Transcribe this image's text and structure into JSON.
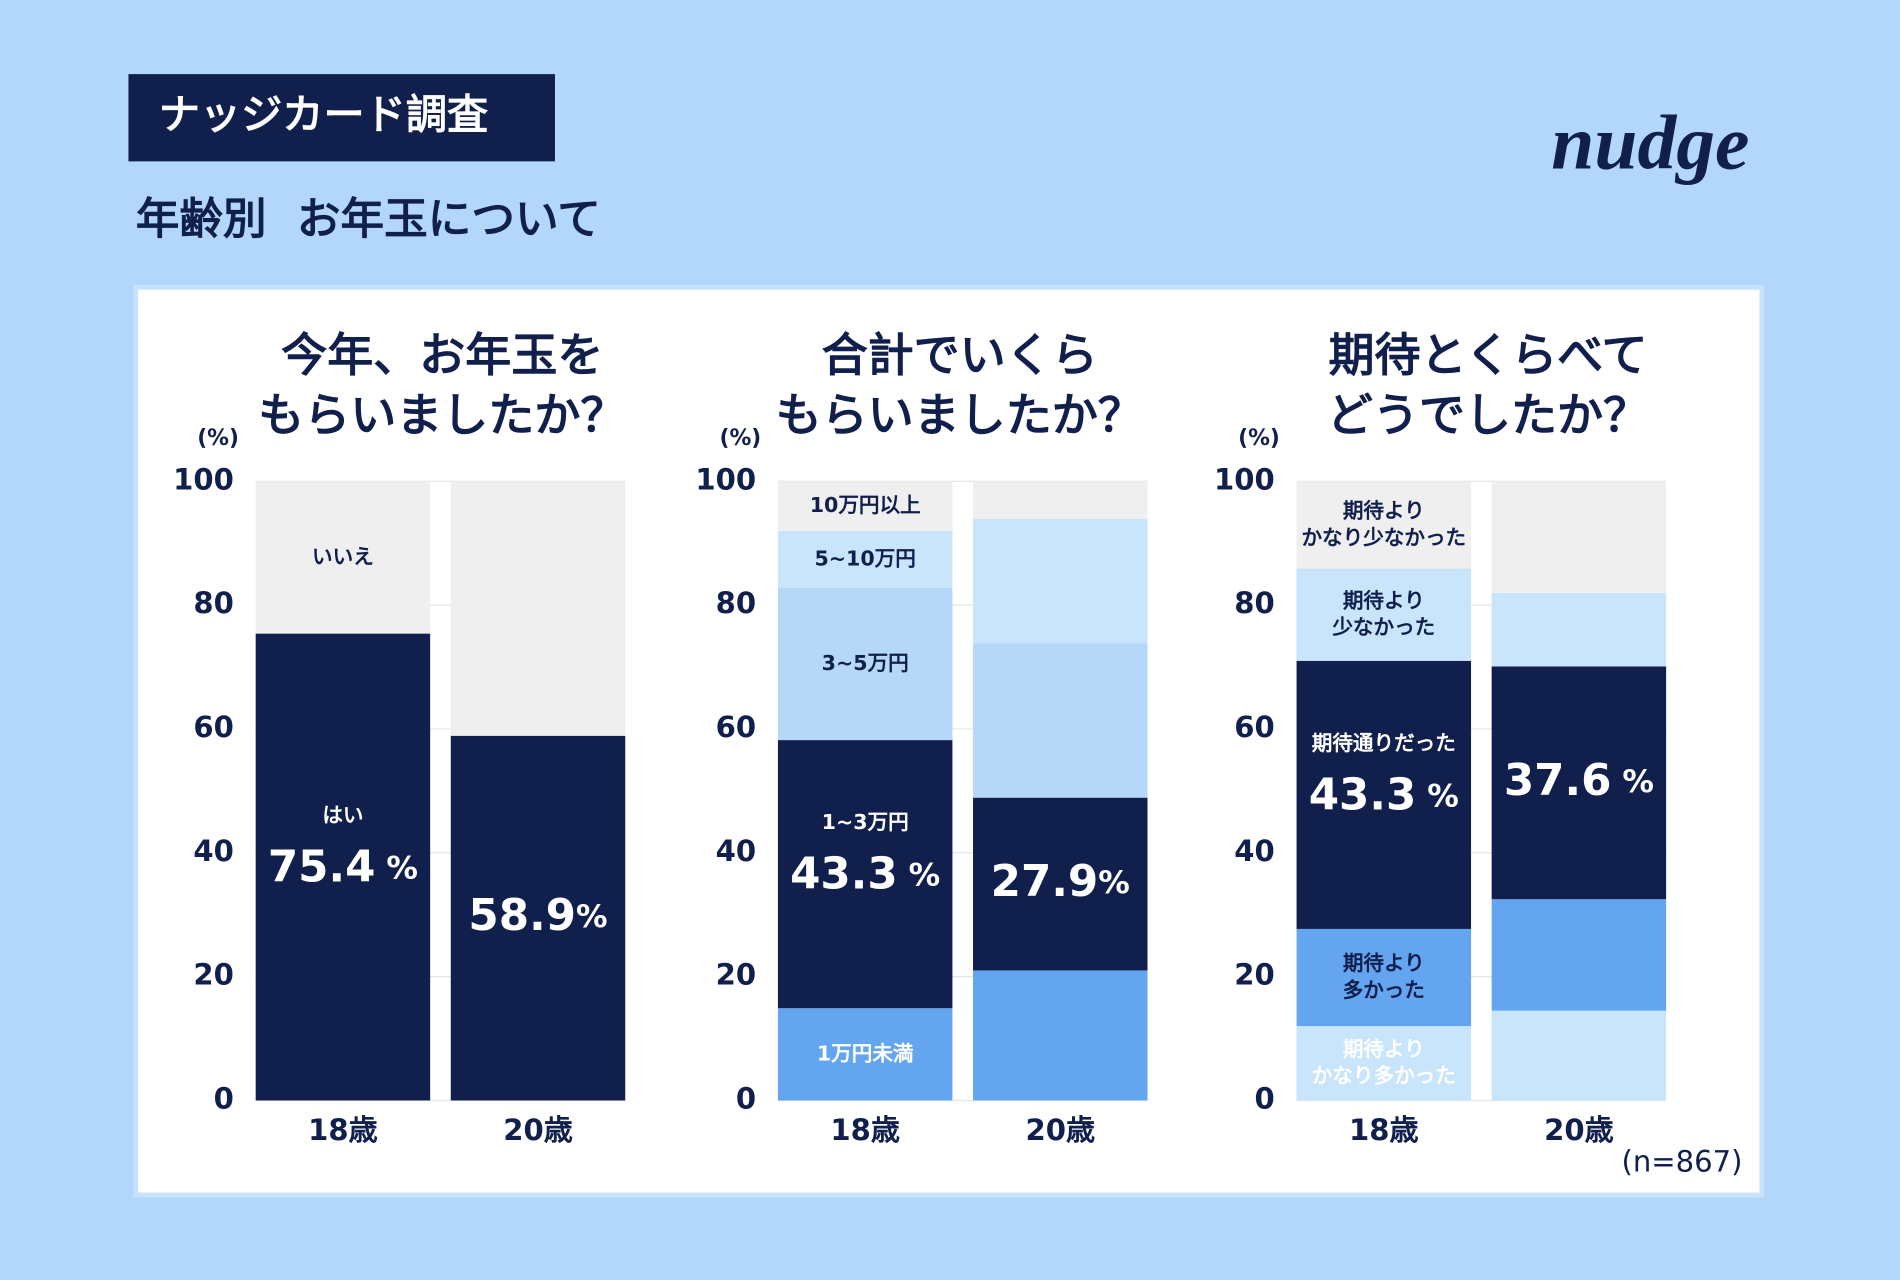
{
  "header": {
    "tag": "ナッジカード調査",
    "title": "年齢別  お年玉について",
    "logo": "nudge",
    "note": "(n=867)"
  },
  "chart_data": [
    {
      "type": "stacked-bar",
      "title": "今年、お年玉を\nもらいましたか？",
      "y_label": "(%)",
      "categories": [
        "18歳",
        "20歳"
      ],
      "ylim": [
        0,
        100
      ],
      "yticks": [
        0,
        20,
        40,
        60,
        80,
        100
      ],
      "grid": true,
      "series": [
        {
          "name": "はい",
          "color": "#111f4d",
          "text_color": "#ffffff",
          "values": [
            75.4,
            58.9
          ],
          "value_labels": [
            "75.4 %",
            "58.9%"
          ]
        },
        {
          "name": "いいえ",
          "color": "#efefef",
          "text_color": "#111f4d",
          "values": [
            24.6,
            41.1
          ]
        }
      ]
    },
    {
      "type": "stacked-bar",
      "title": "合計でいくら\nもらいましたか？",
      "y_label": "(%)",
      "categories": [
        "18歳",
        "20歳"
      ],
      "ylim": [
        0,
        100
      ],
      "yticks": [
        0,
        20,
        40,
        60,
        80,
        100
      ],
      "grid": true,
      "series": [
        {
          "name": "1万円未満",
          "color": "#64a5f0",
          "text_color": "#ffffff",
          "values": [
            14.9,
            21.0
          ]
        },
        {
          "name": "1~3万円",
          "color": "#111f4d",
          "text_color": "#ffffff",
          "values": [
            43.3,
            27.9
          ],
          "value_labels": [
            "43.3 %",
            "27.9%"
          ]
        },
        {
          "name": "3~5万円",
          "color": "#b6d8f8",
          "text_color": "#111f4d",
          "values": [
            24.6,
            24.9
          ]
        },
        {
          "name": "5~10万円",
          "color": "#c8e5fb",
          "text_color": "#111f4d",
          "values": [
            9.2,
            20.1
          ]
        },
        {
          "name": "10万円以上",
          "color": "#efefef",
          "text_color": "#111f4d",
          "values": [
            8.0,
            6.1
          ]
        }
      ]
    },
    {
      "type": "stacked-bar",
      "title": "期待とくらべて\nどうでしたか？",
      "y_label": "(%)",
      "categories": [
        "18歳",
        "20歳"
      ],
      "ylim": [
        0,
        100
      ],
      "yticks": [
        0,
        20,
        40,
        60,
        80,
        100
      ],
      "grid": true,
      "series": [
        {
          "name": "期待より\nかなり多かった",
          "color": "#c8e5fb",
          "text_color": "#ffffff",
          "values": [
            12.0,
            14.5
          ]
        },
        {
          "name": "期待より\n多かった",
          "color": "#64a5f0",
          "text_color": "#111f4d",
          "values": [
            15.7,
            18.0
          ]
        },
        {
          "name": "期待通りだった",
          "color": "#111f4d",
          "text_color": "#ffffff",
          "values": [
            43.3,
            37.6
          ],
          "value_labels": [
            "43.3 %",
            "37.6 %"
          ]
        },
        {
          "name": "期待より\n少なかった",
          "color": "#c8e5fb",
          "text_color": "#111f4d",
          "values": [
            14.9,
            11.9
          ]
        },
        {
          "name": "期待より\nかなり少なかった",
          "color": "#efefef",
          "text_color": "#111f4d",
          "values": [
            14.1,
            18.0
          ]
        }
      ]
    }
  ]
}
